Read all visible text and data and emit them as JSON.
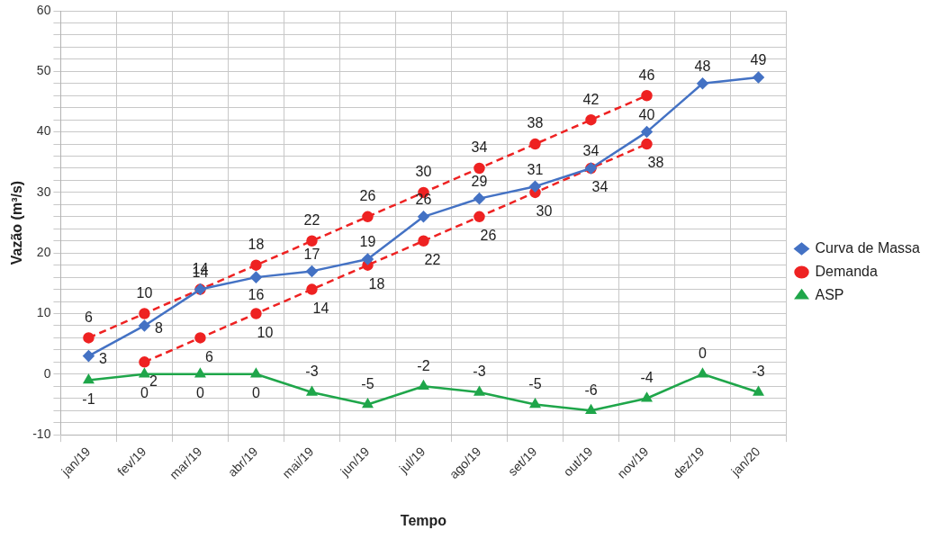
{
  "chart_data": {
    "type": "line",
    "xlabel": "Tempo",
    "ylabel": "Vazão (m³/s)",
    "categories": [
      "jan/19",
      "fev/19",
      "mar/19",
      "abr/19",
      "mai/19",
      "jun/19",
      "jul/19",
      "ago/19",
      "set/19",
      "out/19",
      "nov/19",
      "dez/19",
      "jan/20"
    ],
    "series": [
      {
        "name": "Curva de Massa",
        "color": "#4472c4",
        "marker": "diamond",
        "line_style": "solid",
        "values": [
          3,
          8,
          14,
          16,
          17,
          19,
          26,
          29,
          31,
          34,
          40,
          48,
          49
        ]
      },
      {
        "name": "Demanda",
        "color": "#ee2222",
        "marker": "circle",
        "line_style": "dashed",
        "values": [
          6,
          10,
          14,
          18,
          22,
          26,
          30,
          34,
          38,
          42,
          46,
          null,
          null
        ]
      },
      {
        "color": "#ee2222",
        "marker": "circle",
        "line_style": "dashed",
        "values": [
          null,
          2,
          6,
          10,
          14,
          18,
          22,
          26,
          30,
          34,
          38,
          null,
          null
        ]
      },
      {
        "name": "ASP",
        "color": "#1fa64a",
        "marker": "triangle",
        "line_style": "solid",
        "values": [
          -1,
          0,
          0,
          0,
          -3,
          -5,
          -2,
          -3,
          -5,
          -6,
          -4,
          0,
          -3
        ]
      }
    ],
    "ylim": [
      -10,
      60
    ],
    "yticks": [
      -10,
      {
        "value": -8,
        "label": null
      },
      {
        "value": -6,
        "label": null
      },
      {
        "value": -4,
        "label": null
      },
      {
        "value": -2,
        "label": null
      },
      0,
      {
        "value": 2,
        "label": null
      },
      {
        "value": 4,
        "label": null
      },
      {
        "value": 6,
        "label": null
      },
      {
        "value": 8,
        "label": null
      },
      10,
      {
        "value": 12,
        "label": null
      },
      {
        "value": 14,
        "label": null
      },
      {
        "value": 16,
        "label": null
      },
      {
        "value": 18,
        "label": null
      },
      20,
      {
        "value": 22,
        "label": null
      },
      {
        "value": 24,
        "label": null
      },
      {
        "value": 26,
        "label": null
      },
      {
        "value": 28,
        "label": null
      },
      30,
      {
        "value": 32,
        "label": null
      },
      {
        "value": 34,
        "label": null
      },
      {
        "value": 36,
        "label": null
      },
      {
        "value": 38,
        "label": null
      },
      40,
      {
        "value": 42,
        "label": null
      },
      {
        "value": 44,
        "label": null
      },
      {
        "value": 46,
        "label": null
      },
      {
        "value": 48,
        "label": null
      },
      50,
      {
        "value": 52,
        "label": null
      },
      {
        "value": 54,
        "label": null
      },
      {
        "value": 56,
        "label": null
      },
      {
        "value": 58,
        "label": null
      },
      60
    ],
    "grid": true,
    "legend": "right",
    "data_labels": true
  }
}
